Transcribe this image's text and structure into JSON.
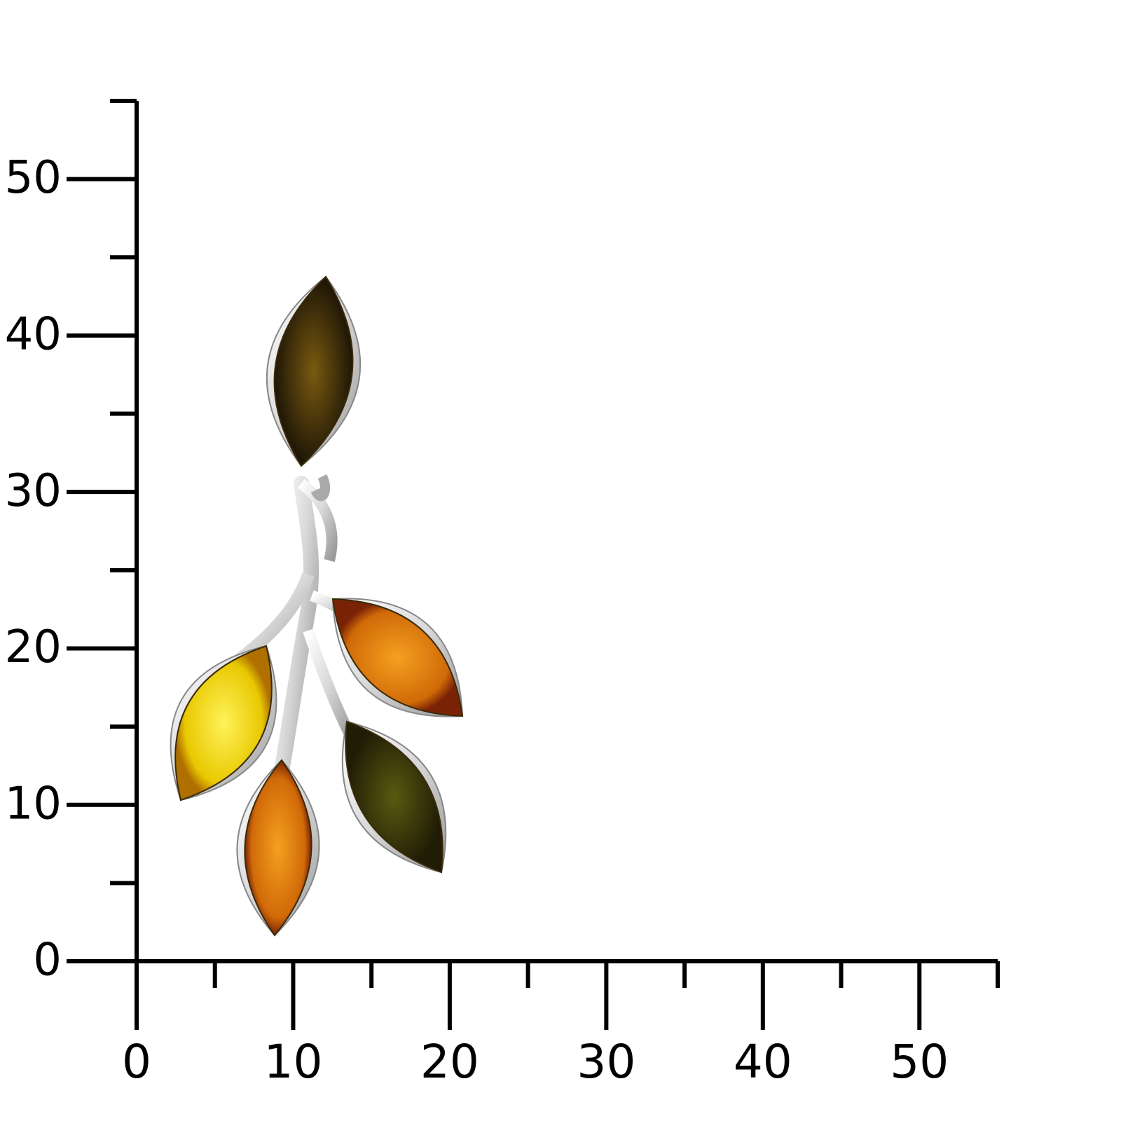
{
  "scale": {
    "xlim": [
      0,
      55
    ],
    "ylim": [
      0,
      55
    ],
    "xticks": [
      0,
      10,
      20,
      30,
      40,
      50
    ],
    "yticks": [
      0,
      10,
      20,
      30,
      40,
      50
    ],
    "xminor": [
      5,
      15,
      25,
      35,
      45,
      55
    ],
    "yminor": [
      5,
      15,
      25,
      35,
      45,
      55
    ]
  }
}
